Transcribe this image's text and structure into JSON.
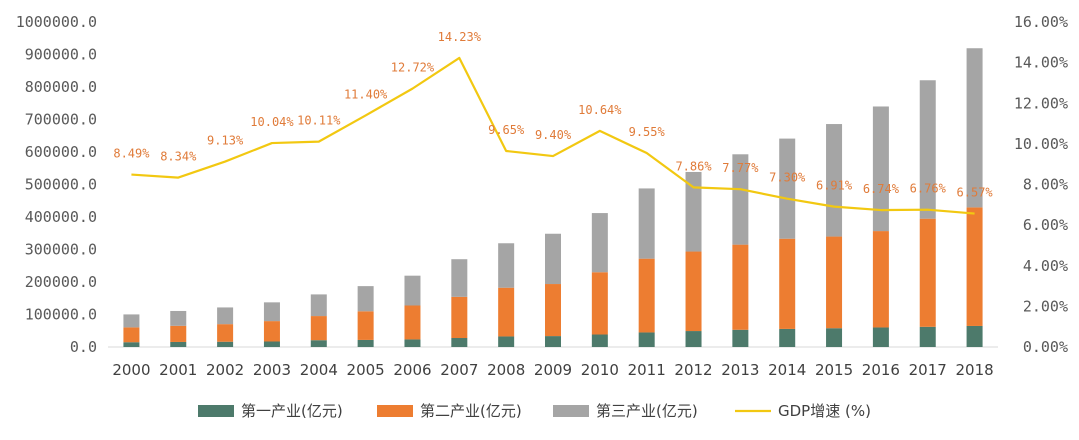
{
  "chart_data": {
    "type": "bar",
    "stacked": true,
    "categories": [
      "2000",
      "2001",
      "2002",
      "2003",
      "2004",
      "2005",
      "2006",
      "2007",
      "2008",
      "2009",
      "2010",
      "2011",
      "2012",
      "2013",
      "2014",
      "2015",
      "2016",
      "2017",
      "2018"
    ],
    "series": [
      {
        "name": "第一产业(亿元)",
        "color": "#4D7A6B",
        "values": [
          14717,
          15502,
          16190,
          16970,
          20904,
          21807,
          23317,
          27674,
          32464,
          33584,
          38430,
          44781,
          49085,
          53028,
          55626,
          57775,
          60139,
          62100,
          64734
        ]
      },
      {
        "name": "第二产业(亿元)",
        "color": "#ED7D31",
        "values": [
          45664,
          49660,
          54105,
          62697,
          74287,
          88084,
          104361,
          126633,
          149956,
          160172,
          191630,
          227039,
          244643,
          261956,
          277572,
          282040,
          296548,
          332743,
          364835
        ]
      },
      {
        "name": "第三产业(亿元)",
        "color": "#A5A5A5",
        "values": [
          39898,
          45701,
          51423,
          57754,
          66648,
          77428,
          91759,
          115810,
          136805,
          154748,
          182038,
          216099,
          244822,
          277959,
          308059,
          346178,
          383374,
          425912,
          489701
        ]
      }
    ],
    "line_series": {
      "name": "GDP增速 (%)",
      "color": "#F2C811",
      "values": [
        8.49,
        8.34,
        9.13,
        10.04,
        10.11,
        11.4,
        12.72,
        14.23,
        9.65,
        9.4,
        10.64,
        9.55,
        7.86,
        7.77,
        7.3,
        6.91,
        6.74,
        6.76,
        6.57
      ],
      "labels": [
        "8.49%",
        "8.34%",
        "9.13%",
        "10.04%",
        "10.11%",
        "11.40%",
        "12.72%",
        "14.23%",
        "9.65%",
        "9.40%",
        "10.64%",
        "9.55%",
        "7.86%",
        "7.77%",
        "7.30%",
        "6.91%",
        "6.74%",
        "6.76%",
        "6.57%"
      ]
    },
    "y_left": {
      "min": 0,
      "max": 1000000,
      "step": 100000,
      "tick_labels": [
        "0.0",
        "100000.0",
        "200000.0",
        "300000.0",
        "400000.0",
        "500000.0",
        "600000.0",
        "700000.0",
        "800000.0",
        "900000.0",
        "1000000.0"
      ]
    },
    "y_right": {
      "min": 0,
      "max": 16,
      "step": 2,
      "tick_labels": [
        "0.00%",
        "2.00%",
        "4.00%",
        "6.00%",
        "8.00%",
        "10.00%",
        "12.00%",
        "14.00%",
        "16.00%"
      ]
    },
    "title": "",
    "xlabel": "",
    "ylabel": "",
    "legend_position": "bottom",
    "grid": false
  }
}
